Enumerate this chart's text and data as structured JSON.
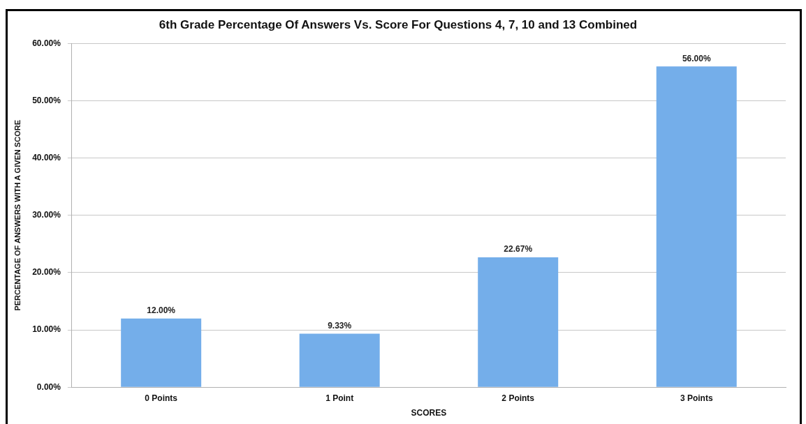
{
  "chart_data": {
    "type": "bar",
    "title": "6th Grade Percentage Of Answers Vs. Score For Questions 4, 7, 10 and 13 Combined",
    "xlabel": "SCORES",
    "ylabel": "PERCENTAGE OF ANSWERS WITH A GIVEN SCORE",
    "categories": [
      "0 Points",
      "1 Point",
      "2 Points",
      "3 Points"
    ],
    "values": [
      12,
      9.33,
      22.67,
      56
    ],
    "value_labels": [
      "12.00%",
      "9.33%",
      "22.67%",
      "56.00%"
    ],
    "color": "#74aeea",
    "ylim": [
      0,
      60
    ],
    "yticks": [
      {
        "value": 0,
        "label": "0.00%"
      },
      {
        "value": 10,
        "label": "10.00%"
      },
      {
        "value": 20,
        "label": "20.00%"
      },
      {
        "value": 30,
        "label": "30.00%"
      },
      {
        "value": 40,
        "label": "40.00%"
      },
      {
        "value": 50,
        "label": "50.00%"
      },
      {
        "value": 60,
        "label": "60.00%"
      }
    ],
    "grid": "y",
    "legend": false
  }
}
